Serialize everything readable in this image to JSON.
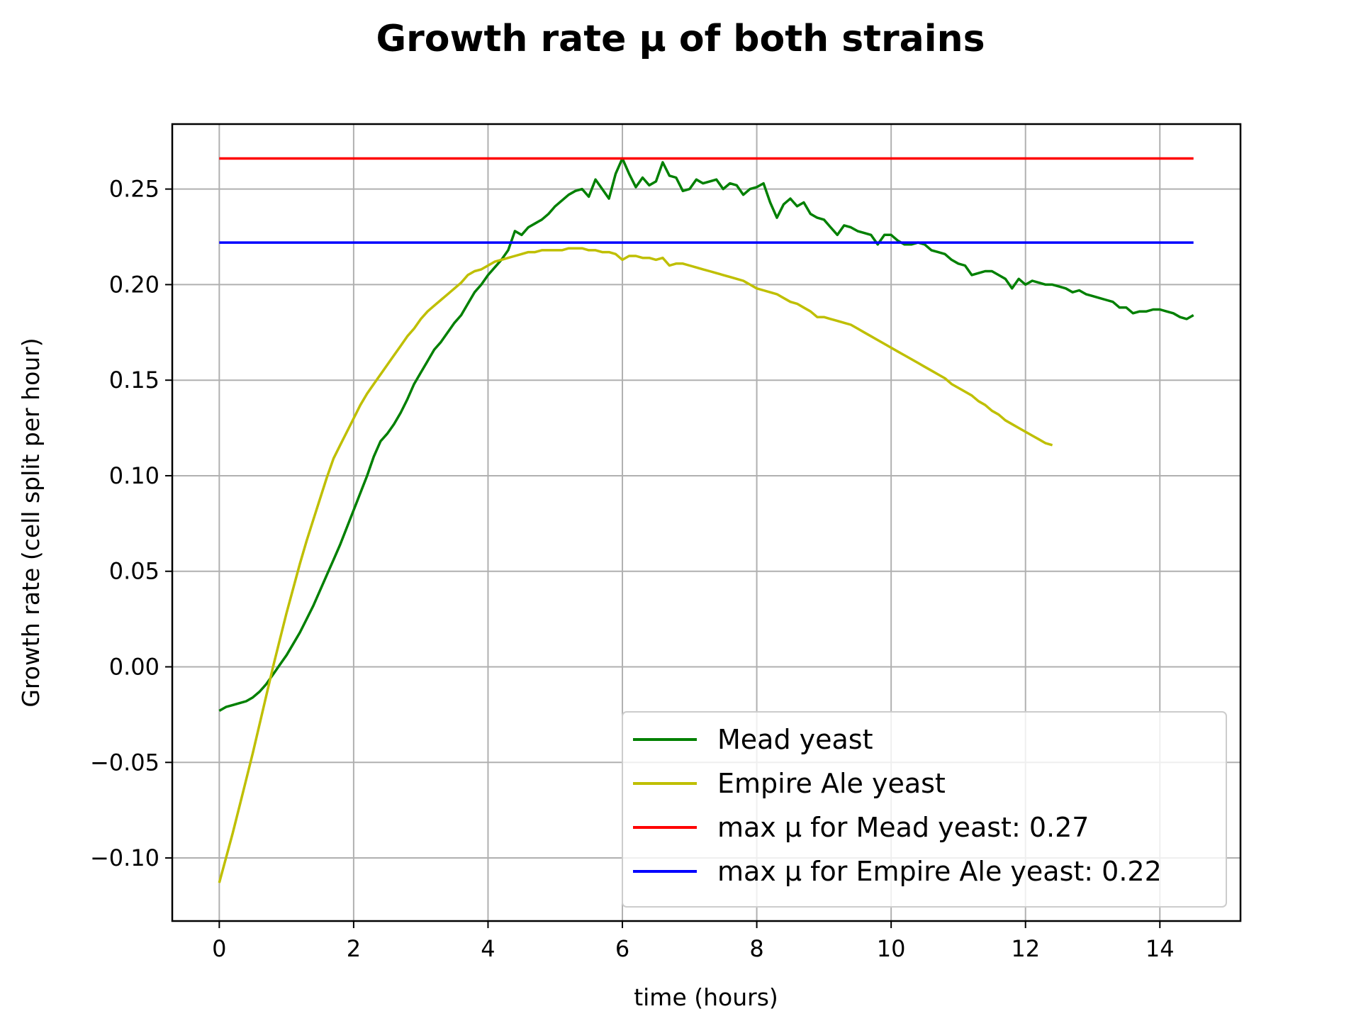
{
  "chart_data": {
    "type": "line",
    "title": "Growth rate μ of both strains",
    "xlabel": "time (hours)",
    "ylabel": "Growth rate (cell split per hour)",
    "xlim": [
      -0.7,
      15.2
    ],
    "ylim": [
      -0.133,
      0.284
    ],
    "grid": true,
    "legend_position": "lower-right",
    "x_ticks": [
      0,
      2,
      4,
      6,
      8,
      10,
      12,
      14
    ],
    "x_tick_labels": [
      "0",
      "2",
      "4",
      "6",
      "8",
      "10",
      "12",
      "14"
    ],
    "y_ticks": [
      -0.1,
      -0.05,
      0.0,
      0.05,
      0.1,
      0.15,
      0.2,
      0.25
    ],
    "y_tick_labels": [
      "−0.10",
      "−0.05",
      "0.00",
      "0.05",
      "0.10",
      "0.15",
      "0.20",
      "0.25"
    ],
    "series": [
      {
        "name": "Mead yeast",
        "color": "#008000",
        "x": [
          0.0,
          0.1,
          0.2,
          0.3,
          0.4,
          0.5,
          0.6,
          0.7,
          0.8,
          0.9,
          1.0,
          1.1,
          1.2,
          1.3,
          1.4,
          1.5,
          1.6,
          1.7,
          1.8,
          1.9,
          2.0,
          2.1,
          2.2,
          2.3,
          2.4,
          2.5,
          2.6,
          2.7,
          2.8,
          2.9,
          3.0,
          3.1,
          3.2,
          3.3,
          3.4,
          3.5,
          3.6,
          3.7,
          3.8,
          3.9,
          4.0,
          4.1,
          4.2,
          4.3,
          4.4,
          4.5,
          4.6,
          4.7,
          4.8,
          4.9,
          5.0,
          5.1,
          5.2,
          5.3,
          5.4,
          5.5,
          5.6,
          5.7,
          5.8,
          5.9,
          6.0,
          6.1,
          6.2,
          6.3,
          6.4,
          6.5,
          6.6,
          6.7,
          6.8,
          6.9,
          7.0,
          7.1,
          7.2,
          7.3,
          7.4,
          7.5,
          7.6,
          7.7,
          7.8,
          7.9,
          8.0,
          8.1,
          8.2,
          8.3,
          8.4,
          8.5,
          8.6,
          8.7,
          8.8,
          8.9,
          9.0,
          9.1,
          9.2,
          9.3,
          9.4,
          9.5,
          9.6,
          9.7,
          9.8,
          9.9,
          10.0,
          10.1,
          10.2,
          10.3,
          10.4,
          10.5,
          10.6,
          10.7,
          10.8,
          10.9,
          11.0,
          11.1,
          11.2,
          11.3,
          11.4,
          11.5,
          11.6,
          11.7,
          11.8,
          11.9,
          12.0,
          12.1,
          12.2,
          12.3,
          12.4,
          12.5,
          12.6,
          12.7,
          12.8,
          12.9,
          13.0,
          13.1,
          13.2,
          13.3,
          13.4,
          13.5,
          13.6,
          13.7,
          13.8,
          13.9,
          14.0,
          14.1,
          14.2,
          14.3,
          14.4,
          14.5
        ],
        "y": [
          -0.023,
          -0.021,
          -0.02,
          -0.019,
          -0.018,
          -0.016,
          -0.013,
          -0.009,
          -0.004,
          0.001,
          0.006,
          0.012,
          0.018,
          0.025,
          0.032,
          0.04,
          0.048,
          0.056,
          0.064,
          0.073,
          0.082,
          0.091,
          0.1,
          0.11,
          0.118,
          0.122,
          0.127,
          0.133,
          0.14,
          0.148,
          0.154,
          0.16,
          0.166,
          0.17,
          0.175,
          0.18,
          0.184,
          0.19,
          0.196,
          0.2,
          0.205,
          0.209,
          0.213,
          0.218,
          0.228,
          0.226,
          0.23,
          0.232,
          0.234,
          0.237,
          0.241,
          0.244,
          0.247,
          0.249,
          0.25,
          0.246,
          0.255,
          0.25,
          0.245,
          0.258,
          0.266,
          0.258,
          0.251,
          0.256,
          0.252,
          0.254,
          0.264,
          0.257,
          0.256,
          0.249,
          0.25,
          0.255,
          0.253,
          0.254,
          0.255,
          0.25,
          0.253,
          0.252,
          0.247,
          0.25,
          0.251,
          0.253,
          0.243,
          0.235,
          0.242,
          0.245,
          0.241,
          0.243,
          0.237,
          0.235,
          0.234,
          0.23,
          0.226,
          0.231,
          0.23,
          0.228,
          0.227,
          0.226,
          0.221,
          0.226,
          0.226,
          0.223,
          0.221,
          0.221,
          0.222,
          0.221,
          0.218,
          0.217,
          0.216,
          0.213,
          0.211,
          0.21,
          0.205,
          0.206,
          0.207,
          0.207,
          0.205,
          0.203,
          0.198,
          0.203,
          0.2,
          0.202,
          0.201,
          0.2,
          0.2,
          0.199,
          0.198,
          0.196,
          0.197,
          0.195,
          0.194,
          0.193,
          0.192,
          0.191,
          0.188,
          0.188,
          0.185,
          0.186,
          0.186,
          0.187,
          0.187,
          0.186,
          0.185,
          0.183,
          0.182,
          0.184
        ]
      },
      {
        "name": "Empire Ale yeast",
        "color": "#bfbf00",
        "x": [
          0.0,
          0.1,
          0.2,
          0.3,
          0.4,
          0.5,
          0.6,
          0.7,
          0.8,
          0.9,
          1.0,
          1.1,
          1.2,
          1.3,
          1.4,
          1.5,
          1.6,
          1.7,
          1.8,
          1.9,
          2.0,
          2.1,
          2.2,
          2.3,
          2.4,
          2.5,
          2.6,
          2.7,
          2.8,
          2.9,
          3.0,
          3.1,
          3.2,
          3.3,
          3.4,
          3.5,
          3.6,
          3.7,
          3.8,
          3.9,
          4.0,
          4.1,
          4.2,
          4.3,
          4.4,
          4.5,
          4.6,
          4.7,
          4.8,
          4.9,
          5.0,
          5.1,
          5.2,
          5.3,
          5.4,
          5.5,
          5.6,
          5.7,
          5.8,
          5.9,
          6.0,
          6.1,
          6.2,
          6.3,
          6.4,
          6.5,
          6.6,
          6.7,
          6.8,
          6.9,
          7.0,
          7.1,
          7.2,
          7.3,
          7.4,
          7.5,
          7.6,
          7.7,
          7.8,
          7.9,
          8.0,
          8.1,
          8.2,
          8.3,
          8.4,
          8.5,
          8.6,
          8.7,
          8.8,
          8.9,
          9.0,
          9.1,
          9.2,
          9.3,
          9.4,
          9.5,
          9.6,
          9.7,
          9.8,
          9.9,
          10.0,
          10.1,
          10.2,
          10.3,
          10.4,
          10.5,
          10.6,
          10.7,
          10.8,
          10.9,
          11.0,
          11.1,
          11.2,
          11.3,
          11.4,
          11.5,
          11.6,
          11.7,
          11.8,
          11.9,
          12.0,
          12.1,
          12.2,
          12.3,
          12.4
        ],
        "y": [
          -0.113,
          -0.1,
          -0.087,
          -0.073,
          -0.059,
          -0.045,
          -0.03,
          -0.015,
          0.0,
          0.014,
          0.028,
          0.041,
          0.054,
          0.066,
          0.077,
          0.088,
          0.099,
          0.109,
          0.116,
          0.123,
          0.13,
          0.137,
          0.143,
          0.148,
          0.153,
          0.158,
          0.163,
          0.168,
          0.173,
          0.177,
          0.182,
          0.186,
          0.189,
          0.192,
          0.195,
          0.198,
          0.201,
          0.205,
          0.207,
          0.208,
          0.21,
          0.212,
          0.213,
          0.214,
          0.215,
          0.216,
          0.217,
          0.217,
          0.218,
          0.218,
          0.218,
          0.218,
          0.219,
          0.219,
          0.219,
          0.218,
          0.218,
          0.217,
          0.217,
          0.216,
          0.213,
          0.215,
          0.215,
          0.214,
          0.214,
          0.213,
          0.214,
          0.21,
          0.211,
          0.211,
          0.21,
          0.209,
          0.208,
          0.207,
          0.206,
          0.205,
          0.204,
          0.203,
          0.202,
          0.2,
          0.198,
          0.197,
          0.196,
          0.195,
          0.193,
          0.191,
          0.19,
          0.188,
          0.186,
          0.183,
          0.183,
          0.182,
          0.181,
          0.18,
          0.179,
          0.177,
          0.175,
          0.173,
          0.171,
          0.169,
          0.167,
          0.165,
          0.163,
          0.161,
          0.159,
          0.157,
          0.155,
          0.153,
          0.151,
          0.148,
          0.146,
          0.144,
          0.142,
          0.139,
          0.137,
          0.134,
          0.132,
          0.129,
          0.127,
          0.125,
          0.123,
          0.121,
          0.119,
          0.117,
          0.116
        ]
      },
      {
        "name": "max μ for Mead yeast: 0.27",
        "color": "#ff0000",
        "x": [
          0.0,
          14.5
        ],
        "y": [
          0.266,
          0.266
        ]
      },
      {
        "name": "max μ for Empire Ale yeast: 0.22",
        "color": "#0000ff",
        "x": [
          0.0,
          14.5
        ],
        "y": [
          0.222,
          0.222
        ]
      }
    ]
  }
}
